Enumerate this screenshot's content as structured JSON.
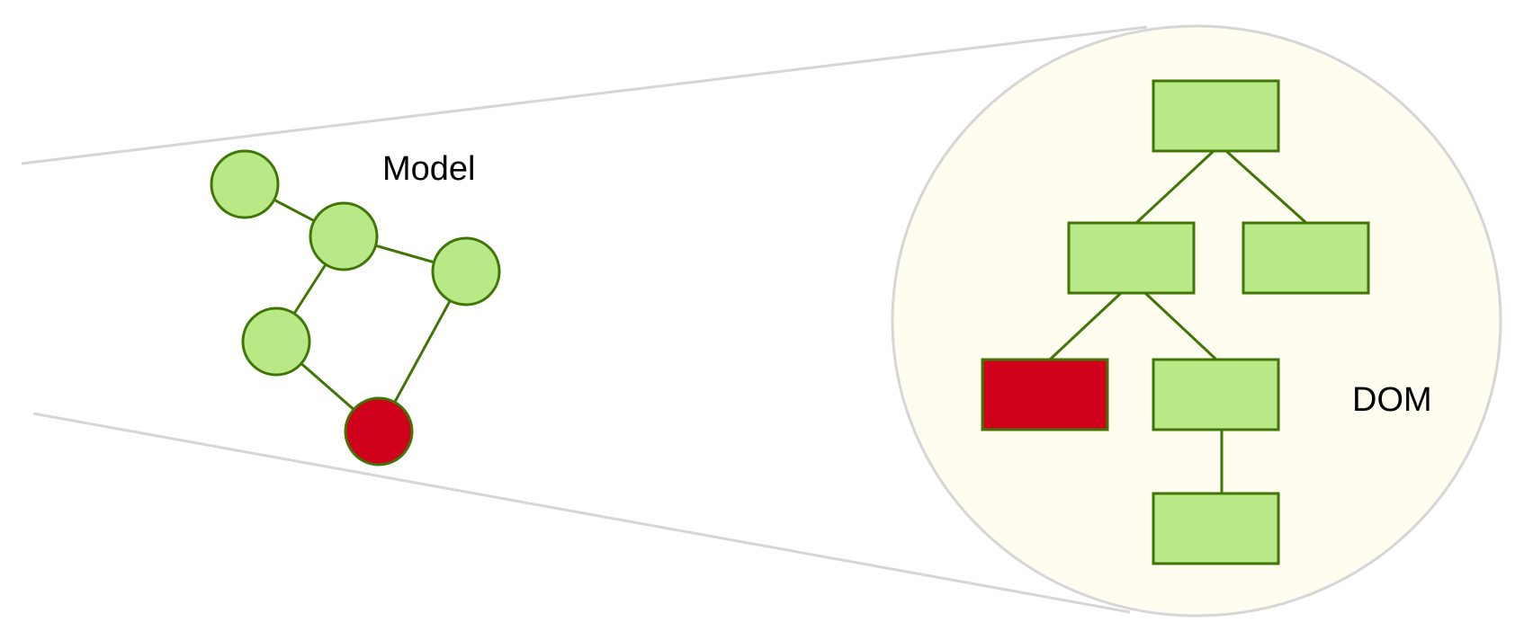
{
  "labels": {
    "model": "Model",
    "dom": "DOM"
  },
  "colors": {
    "node_fill": "#b8e986",
    "node_stroke": "#417505",
    "highlight_fill": "#d0021b",
    "zoom_lines": "#d6d6d6",
    "dom_background": "#fefdf0",
    "text": "#000000"
  },
  "model_graph": {
    "nodes": [
      {
        "id": "m1",
        "highlighted": false
      },
      {
        "id": "m2",
        "highlighted": false
      },
      {
        "id": "m3",
        "highlighted": false
      },
      {
        "id": "m4",
        "highlighted": false
      },
      {
        "id": "m5",
        "highlighted": true
      }
    ],
    "edges": [
      [
        "m1",
        "m2"
      ],
      [
        "m2",
        "m3"
      ],
      [
        "m2",
        "m4"
      ],
      [
        "m3",
        "m5"
      ],
      [
        "m4",
        "m5"
      ]
    ]
  },
  "dom_tree": {
    "nodes": [
      {
        "id": "d1",
        "highlighted": false
      },
      {
        "id": "d2",
        "highlighted": false
      },
      {
        "id": "d3",
        "highlighted": false
      },
      {
        "id": "d4",
        "highlighted": true
      },
      {
        "id": "d5",
        "highlighted": false
      },
      {
        "id": "d6",
        "highlighted": false
      }
    ],
    "edges": [
      [
        "d1",
        "d2"
      ],
      [
        "d1",
        "d3"
      ],
      [
        "d2",
        "d4"
      ],
      [
        "d2",
        "d5"
      ],
      [
        "d5",
        "d6"
      ]
    ]
  }
}
